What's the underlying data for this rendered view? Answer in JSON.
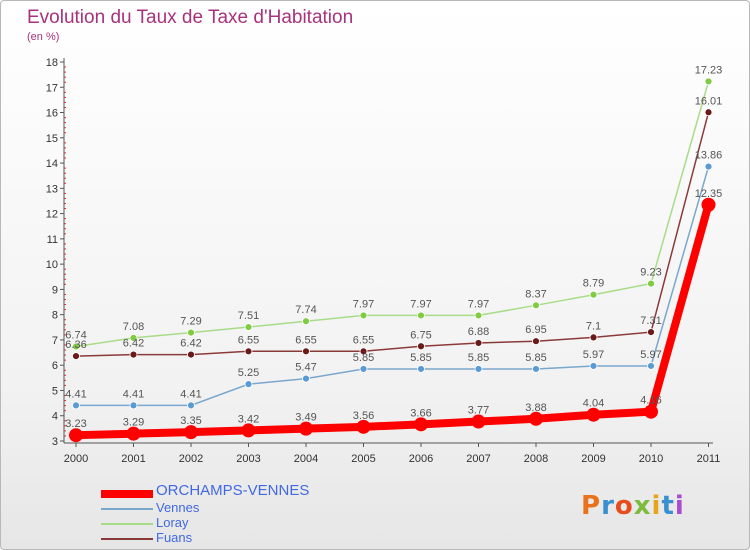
{
  "header": {
    "title": "Evolution du Taux de Taxe d'Habitation",
    "subtitle": "(en %)"
  },
  "logo": {
    "text": "Proxiti",
    "colors": [
      "#e8731c",
      "#3a8fd0",
      "#e84c1c",
      "#7dbb3c",
      "#e8a51c",
      "#3a8fd0",
      "#a84cd0"
    ]
  },
  "chart_data": {
    "type": "line",
    "title": "Evolution du Taux de Taxe d'Habitation",
    "subtitle": "(en %)",
    "xlabel": "",
    "ylabel": "",
    "x": [
      "2000",
      "2001",
      "2002",
      "2003",
      "2004",
      "2005",
      "2006",
      "2007",
      "2008",
      "2009",
      "2010",
      "2011"
    ],
    "ylim": [
      3,
      18
    ],
    "yticks": [
      "3",
      "4",
      "5",
      "6",
      "7",
      "8",
      "9",
      "10",
      "11",
      "12",
      "13",
      "14",
      "15",
      "16",
      "17",
      "18"
    ],
    "grid": false,
    "legend_position": "bottom-left",
    "series": [
      {
        "name": "ORCHAMPS-VENNES",
        "color": "#ff0000",
        "emphasis": true,
        "values": [
          3.23,
          3.29,
          3.35,
          3.42,
          3.49,
          3.56,
          3.66,
          3.77,
          3.88,
          4.04,
          4.16,
          12.35
        ],
        "labels": [
          "3.23",
          "3.29",
          "3.35",
          "3.42",
          "3.49",
          "3.56",
          "3.66",
          "3.77",
          "3.88",
          "4.04",
          "4.16",
          "12.35"
        ]
      },
      {
        "name": "Vennes",
        "color": "#5b9bd5",
        "line_color": "#7aa7cc",
        "emphasis": false,
        "values": [
          4.41,
          4.41,
          4.41,
          5.25,
          5.47,
          5.85,
          5.85,
          5.85,
          5.85,
          5.97,
          5.97,
          13.86
        ],
        "labels": [
          "4.41",
          "4.41",
          "4.41",
          "5.25",
          "5.47",
          "5.85",
          "5.85",
          "5.85",
          "5.85",
          "5.97",
          "5.97",
          "13.86"
        ]
      },
      {
        "name": "Loray",
        "color": "#7fcc40",
        "line_color": "#a8dc88",
        "emphasis": false,
        "values": [
          6.74,
          7.08,
          7.29,
          7.51,
          7.74,
          7.97,
          7.97,
          7.97,
          8.37,
          8.79,
          9.23,
          17.23
        ],
        "labels": [
          "6.74",
          "7.08",
          "7.29",
          "7.51",
          "7.74",
          "7.97",
          "7.97",
          "7.97",
          "8.37",
          "8.79",
          "9.23",
          "17.23"
        ]
      },
      {
        "name": "Fuans",
        "color": "#6b1a1a",
        "line_color": "#8b3a3a",
        "emphasis": false,
        "values": [
          6.36,
          6.42,
          6.42,
          6.55,
          6.55,
          6.55,
          6.75,
          6.88,
          6.95,
          7.1,
          7.31,
          16.01
        ],
        "labels": [
          "6.36",
          "6.42",
          "6.42",
          "6.55",
          "6.55",
          "6.55",
          "6.75",
          "6.88",
          "6.95",
          "7.1",
          "7.31",
          "16.01"
        ]
      }
    ]
  }
}
